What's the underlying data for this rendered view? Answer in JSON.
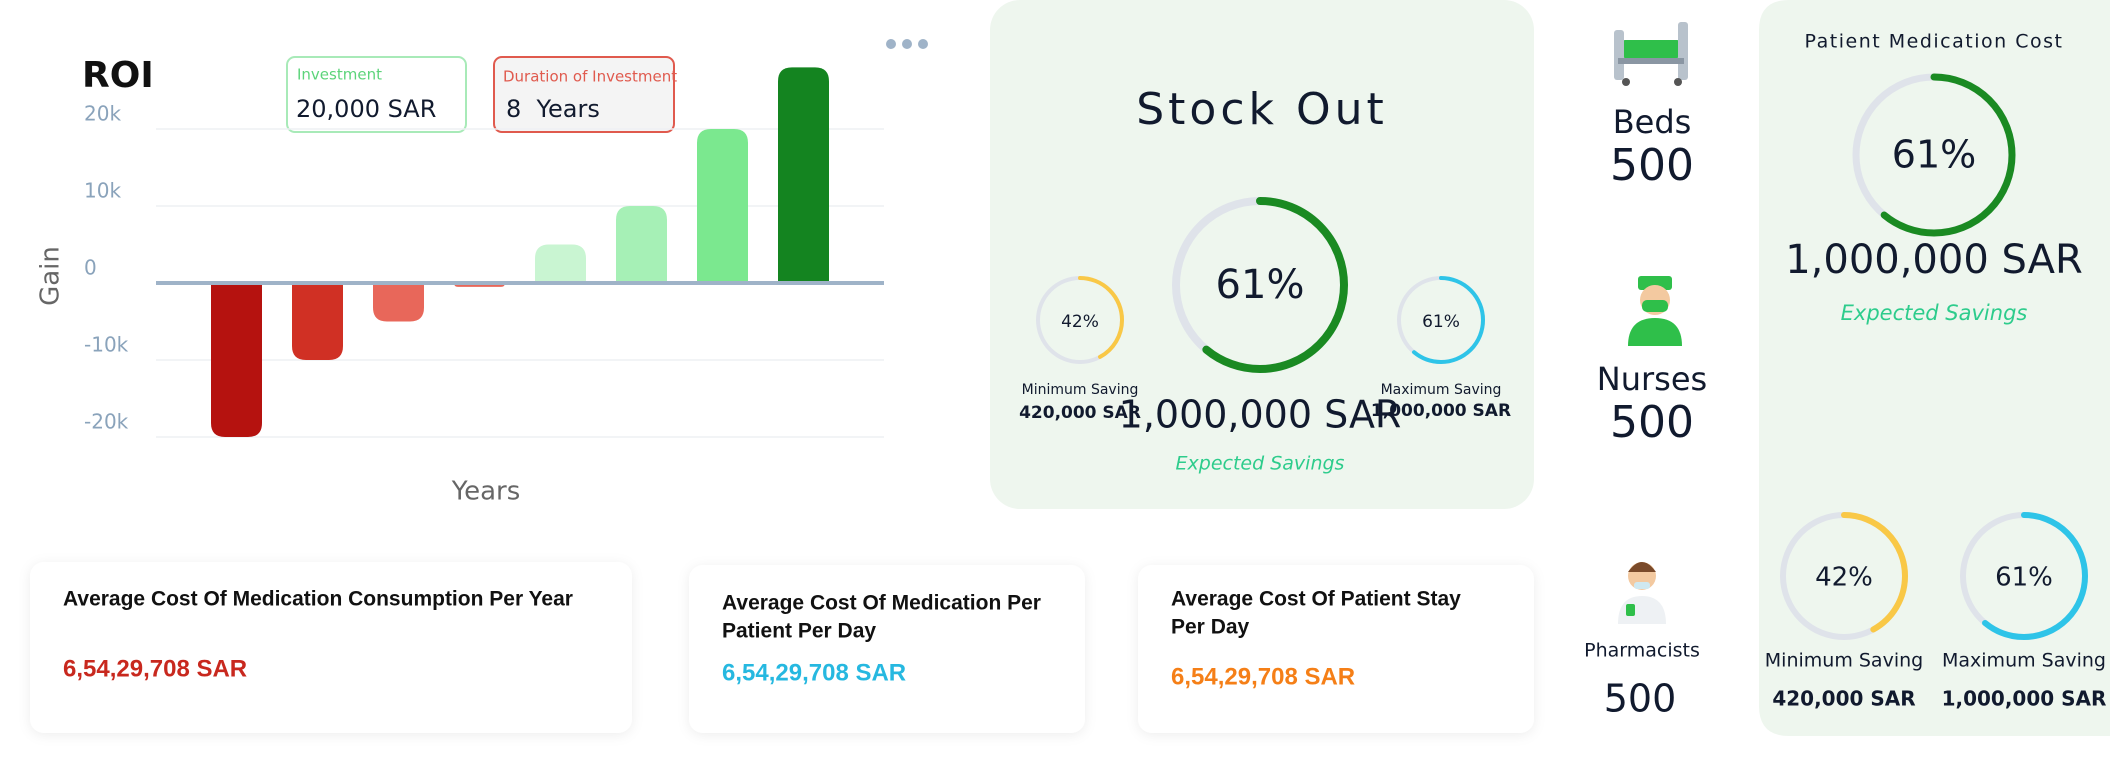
{
  "chart_data": {
    "type": "bar",
    "title": "ROI",
    "y_label": "Gain",
    "x_label": "Years",
    "categories": [
      null,
      null,
      null,
      null,
      null,
      null,
      null,
      null
    ],
    "values": [
      -20000,
      -10000,
      -5000,
      -500,
      5000,
      10000,
      20000,
      28000
    ],
    "colors": [
      "#b5120f",
      "#d03024",
      "#e8675a",
      "#e8675a",
      "#c9f5d2",
      "#a6f0b6",
      "#7be88f",
      "#148420"
    ],
    "ylim": [
      -20000,
      30000
    ],
    "yticks": [
      {
        "value": 20000,
        "label": "20k"
      },
      {
        "value": 10000,
        "label": "10k"
      },
      0,
      {
        "value": -10000,
        "label": "-10k"
      },
      {
        "value": -20000,
        "label": "-20k"
      }
    ],
    "grid": true
  },
  "badges": [
    {
      "label": "Investment",
      "value": "20,000 SAR"
    },
    {
      "label": "Duration of Investment",
      "value": "8  Years"
    }
  ],
  "stock_out": {
    "title": "Stock Out",
    "main": {
      "percent": {
        "value": 61,
        "label": "61%"
      },
      "color": "#1a8a22",
      "amount": "1,000,000 SAR",
      "caption": "Expected Savings"
    },
    "minimum": {
      "percent": {
        "value": 42,
        "label": "42%"
      },
      "color": "#f9c846",
      "caption": "Minimum Saving",
      "amount": "420,000 SAR"
    },
    "maximum": {
      "percent": {
        "value": 61,
        "label": "61%"
      },
      "color": "#2ec4e8",
      "caption": "Maximum Saving",
      "amount": "1,000,000 SAR"
    }
  },
  "staff": [
    {
      "label": "Beds",
      "count": 500
    },
    {
      "label": "Nurses",
      "count": 500
    },
    {
      "label": "Pharmacists",
      "count": 500
    }
  ],
  "patient_medication_cost": {
    "title": "Patient Medication Cost",
    "main": {
      "percent": {
        "value": 61,
        "label": "61%"
      },
      "color": "#1a8a22",
      "amount": "1,000,000 SAR",
      "caption": "Expected Savings"
    },
    "minimum": {
      "percent": {
        "value": 42,
        "label": "42%"
      },
      "color": "#f9c846",
      "caption": "Minimum Saving",
      "amount": "420,000 SAR"
    },
    "maximum": {
      "percent": {
        "value": 61,
        "label": "61%"
      },
      "color": "#2ec4e8",
      "caption": "Maximum Saving",
      "amount": "1,000,000 SAR"
    }
  },
  "cards": [
    {
      "title": [
        "Average Cost Of Medication Consumption Per Year"
      ],
      "value": "6,54,29,708 SAR"
    },
    {
      "title": [
        "Average Cost Of Medication Per",
        "Patient Per Day"
      ],
      "value": "6,54,29,708 SAR"
    },
    {
      "title": [
        "Average Cost Of Patient Stay",
        "Per Day"
      ],
      "value": "6,54,29,708 SAR"
    }
  ]
}
